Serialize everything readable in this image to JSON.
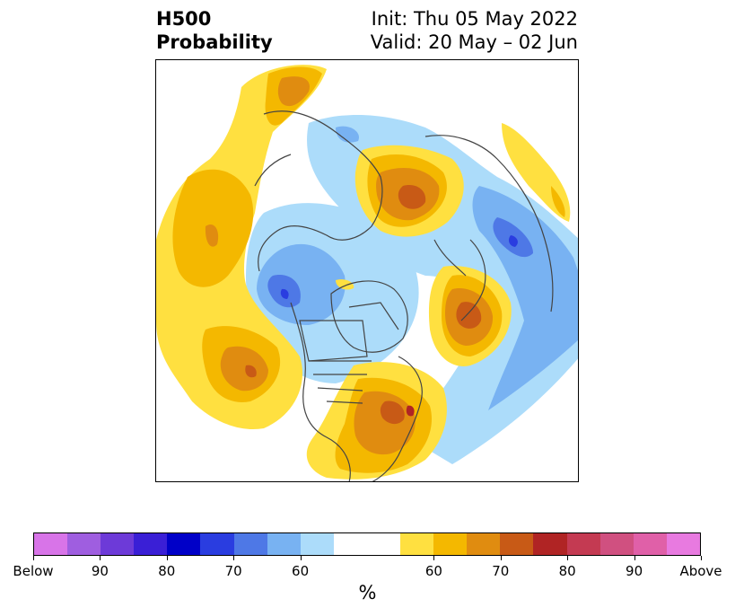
{
  "title": {
    "left_line1": "H500",
    "left_line2": "Probability",
    "right_line1": "Init: Thu 05 May 2022",
    "right_line2": "Valid: 20 May – 02 Jun"
  },
  "colorbar": {
    "colors": [
      "#d874e8",
      "#9f5ee0",
      "#6d3ad8",
      "#3a1fd6",
      "#0000c8",
      "#2a3de0",
      "#4e78e6",
      "#78b2f2",
      "#acdcfa",
      "#ffffff",
      "#ffffff",
      "#ffe040",
      "#f4b800",
      "#e08c10",
      "#c85a16",
      "#b02424",
      "#c43a52",
      "#d05080",
      "#e060a8",
      "#e87ae0"
    ],
    "tick_labels": [
      "Below",
      "90",
      "80",
      "70",
      "60",
      "60",
      "70",
      "80",
      "90",
      "Above"
    ],
    "unit_label": "%"
  },
  "map_colors": {
    "yellow": "#ffe040",
    "gold": "#f4b800",
    "orange": "#e08c10",
    "dark_orange": "#c85a16",
    "red": "#b02424",
    "light_blue": "#acdcfa",
    "blue": "#78b2f2",
    "mid_blue": "#4e78e6",
    "deep_blue": "#2a3de0",
    "coast": "#444444"
  }
}
